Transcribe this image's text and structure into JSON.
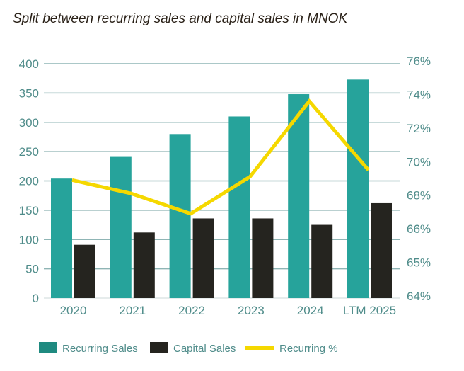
{
  "chart_data": {
    "type": "bar",
    "title": "Split between recurring sales and capital sales in MNOK",
    "categories": [
      "2020",
      "2021",
      "2022",
      "2023",
      "2024",
      "LTM 2025"
    ],
    "series": [
      {
        "name": "Recurring Sales",
        "kind": "bar",
        "axis": "left",
        "color": "#26a39b",
        "values": [
          204,
          241,
          280,
          310,
          348,
          373
        ]
      },
      {
        "name": "Capital Sales",
        "kind": "bar",
        "axis": "left",
        "color": "#25241f",
        "values": [
          91,
          112,
          136,
          136,
          125,
          162
        ]
      },
      {
        "name": "Recurring %",
        "kind": "line",
        "axis": "right",
        "color": "#f5d800",
        "values": [
          68.9,
          68.1,
          66.9,
          69.1,
          73.6,
          69.5
        ]
      }
    ],
    "left_axis": {
      "ticks": [
        0,
        50,
        100,
        150,
        200,
        250,
        300,
        350,
        400
      ],
      "ylim": [
        0,
        400
      ]
    },
    "right_axis": {
      "ticks": [
        "64%",
        "65%",
        "66%",
        "68%",
        "70%",
        "72%",
        "74%",
        "76%"
      ],
      "tick_values": [
        64,
        65,
        66,
        68,
        70,
        72,
        74,
        76
      ]
    },
    "grid": true,
    "legend": "bottom"
  }
}
